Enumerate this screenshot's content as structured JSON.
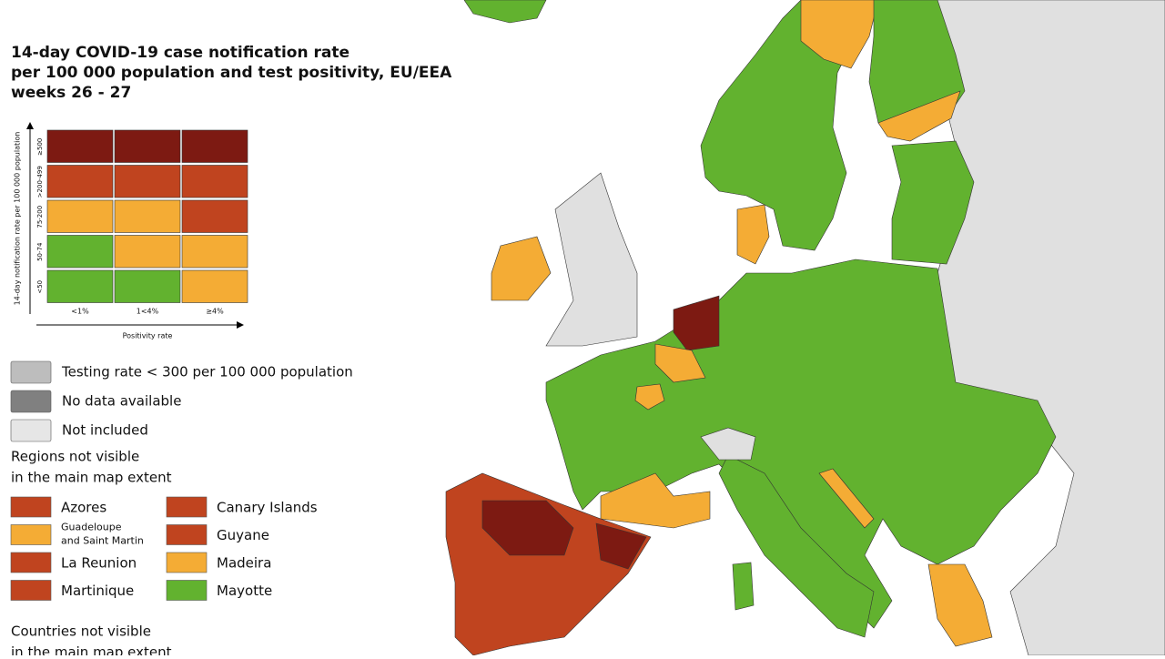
{
  "title": [
    "14-day COVID-19 case notification rate",
    "per 100 000 population and test positivity, EU/EEA",
    "weeks 26 - 27"
  ],
  "legend_matrix": {
    "y_label": "14-day notification rate per 100 000 population",
    "x_label": "Positivity rate",
    "row_labels": [
      "≥500",
      ">200-499",
      "75-200",
      "50-74",
      "<50"
    ],
    "column_labels": [
      "<1%",
      "1<4%",
      "≥4%"
    ],
    "rows": [
      [
        "#7d1a12",
        "#7d1a12",
        "#7d1a12"
      ],
      [
        "#c0441f",
        "#c0441f",
        "#c0441f"
      ],
      [
        "#f4ac35",
        "#f4ac35",
        "#c0441f"
      ],
      [
        "#62b22f",
        "#f4ac35",
        "#f4ac35"
      ],
      [
        "#62b22f",
        "#62b22f",
        "#f4ac35"
      ]
    ]
  },
  "legend": [
    {
      "label": "Testing rate < 300 per 100 000 population",
      "color": "#bdbdbd"
    },
    {
      "label": "No data available",
      "color": "#808080"
    },
    {
      "label": "Not included",
      "color": "#e6e6e6"
    }
  ],
  "regions_heading": [
    "Regions not visible",
    "in the main map extent"
  ],
  "regions": [
    {
      "label": "Azores",
      "color": "#c0441f"
    },
    {
      "label": "Guadeloupe and Saint Martin",
      "color": "#f4ac35"
    },
    {
      "label": "La Reunion",
      "color": "#c0441f"
    },
    {
      "label": "Martinique",
      "color": "#c0441f"
    },
    {
      "label": "Canary Islands",
      "color": "#c0441f"
    },
    {
      "label": "Guyane",
      "color": "#c0441f"
    },
    {
      "label": "Madeira",
      "color": "#f4ac35"
    },
    {
      "label": "Mayotte",
      "color": "#62b22f"
    }
  ],
  "countries_heading": [
    "Countries not visible",
    "in the main map extent"
  ]
}
